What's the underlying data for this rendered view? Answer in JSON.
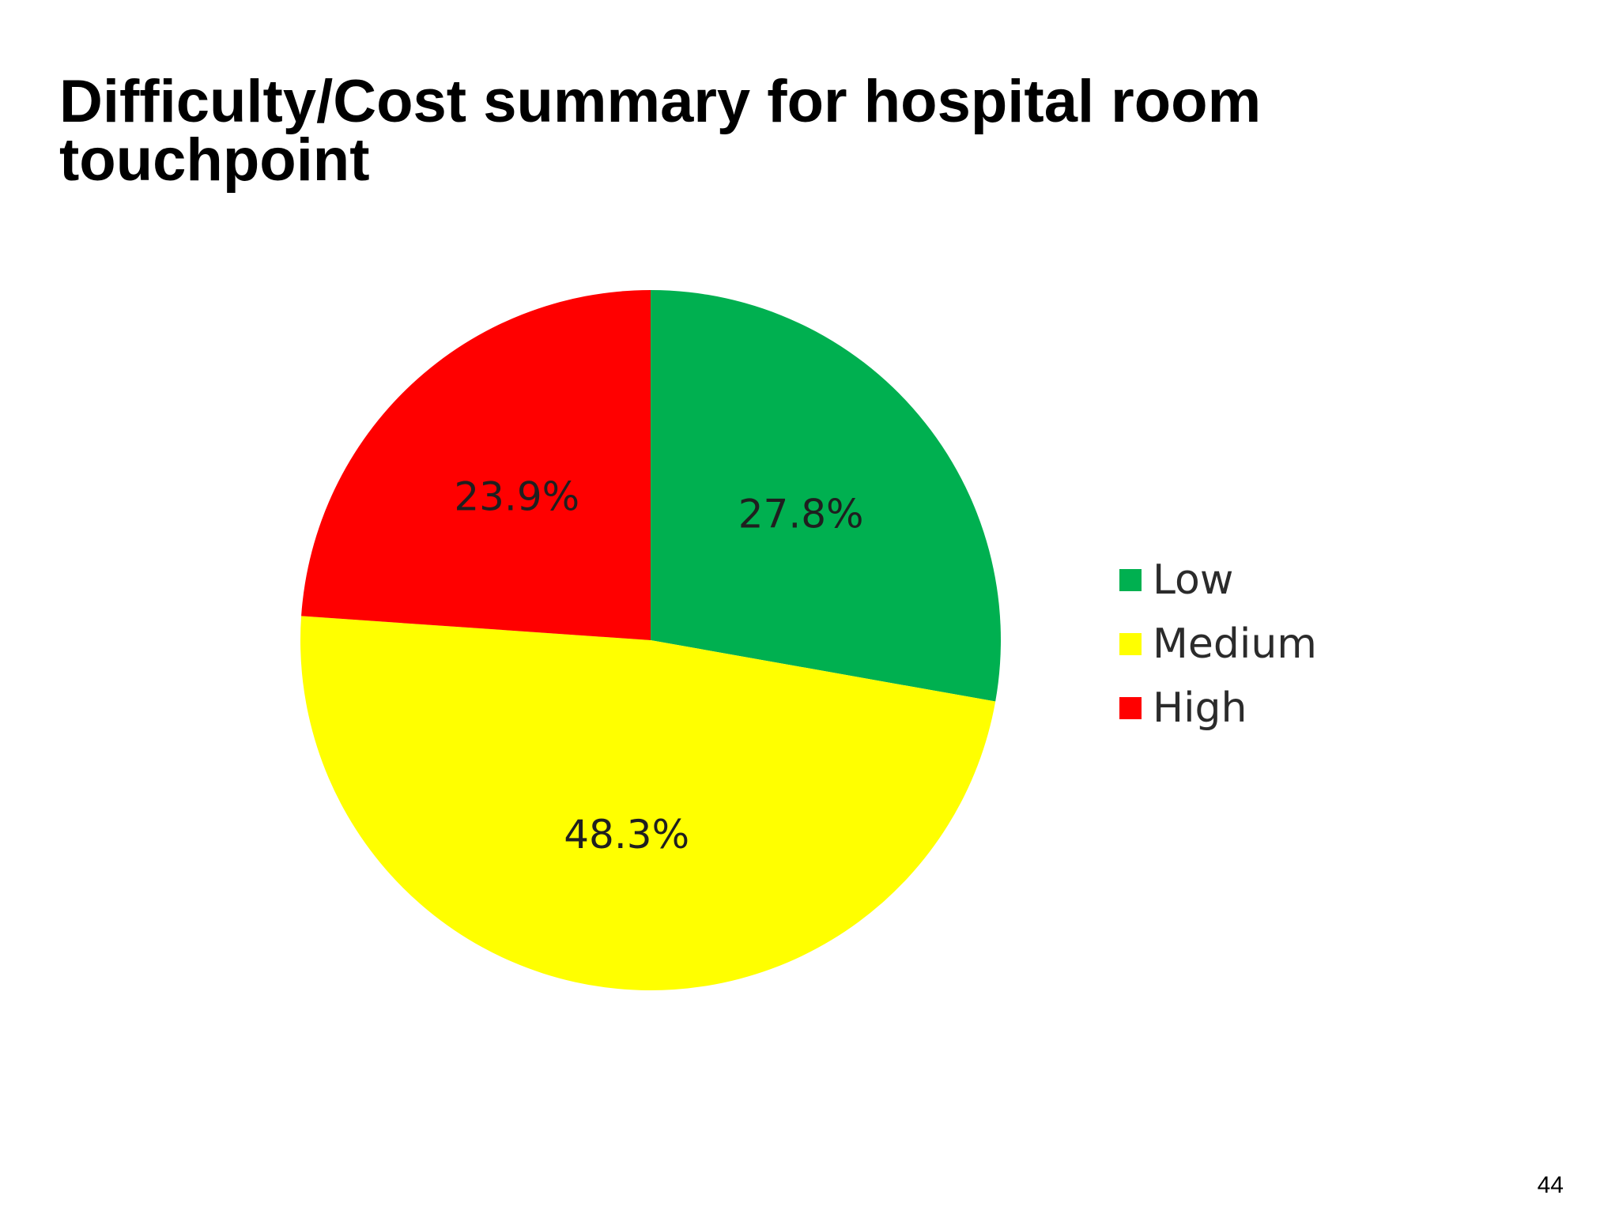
{
  "slide": {
    "title": "Difficulty/Cost summary for hospital room touchpoint",
    "page_number": "44"
  },
  "chart_data": {
    "type": "pie",
    "categories": [
      "Low",
      "Medium",
      "High"
    ],
    "values": [
      27.8,
      48.3,
      23.9
    ],
    "data_labels": [
      "27.8%",
      "48.3%",
      "23.9%"
    ],
    "colors": [
      "#00b050",
      "#ffff00",
      "#ff0000"
    ],
    "start_angle": "12 o'clock",
    "direction": "clockwise",
    "legend": {
      "placement": "right",
      "entries": [
        "Low",
        "Medium",
        "High"
      ]
    }
  }
}
